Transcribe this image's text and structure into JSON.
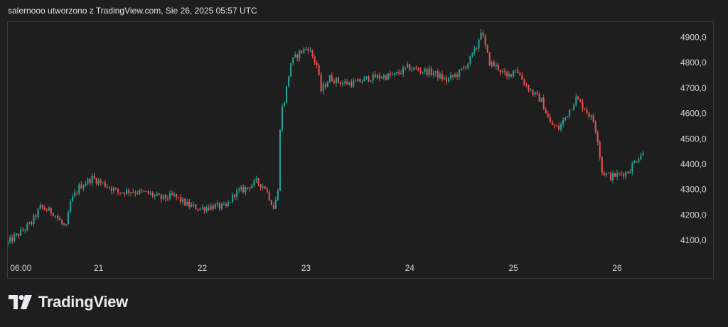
{
  "header": {
    "caption": "salernooo utworzono z TradingView.com, Sie 26, 2025 05:57 UTC"
  },
  "branding": {
    "logo_text": "TradingView",
    "logo_icon": "tradingview-logo-icon"
  },
  "colors": {
    "background": "#1e1e1e",
    "up": "#26a69a",
    "down": "#ef5350",
    "text": "#d1d4dc",
    "border": "#3a3a3a"
  },
  "chart_data": {
    "type": "candlestick",
    "y_axis_position": "right",
    "ylim": [
      4050,
      4960
    ],
    "y_ticks": [
      4100,
      4200,
      4300,
      4400,
      4500,
      4600,
      4700,
      4800,
      4900
    ],
    "y_tick_labels": [
      "4100,0",
      "4200,0",
      "4300,0",
      "4400,0",
      "4500,0",
      "4600,0",
      "4700,0",
      "4800,0",
      "4900,0"
    ],
    "x_ticks": [
      {
        "t": 0,
        "label": "06:00"
      },
      {
        "t": 18,
        "label": "21"
      },
      {
        "t": 42,
        "label": "22"
      },
      {
        "t": 66,
        "label": "23"
      },
      {
        "t": 90,
        "label": "24"
      },
      {
        "t": 114,
        "label": "25"
      },
      {
        "t": 138,
        "label": "26"
      }
    ],
    "x_range_hours": [
      -3,
      150
    ],
    "last_time_hours": 144,
    "price_path": [
      [
        -3,
        4085
      ],
      [
        0,
        4125
      ],
      [
        3,
        4170
      ],
      [
        5,
        4230
      ],
      [
        8,
        4210
      ],
      [
        10,
        4165
      ],
      [
        11,
        4150
      ],
      [
        12,
        4250
      ],
      [
        14,
        4310
      ],
      [
        17,
        4345
      ],
      [
        20,
        4320
      ],
      [
        23,
        4290
      ],
      [
        26,
        4295
      ],
      [
        30,
        4285
      ],
      [
        33,
        4265
      ],
      [
        36,
        4275
      ],
      [
        39,
        4240
      ],
      [
        42,
        4225
      ],
      [
        45,
        4235
      ],
      [
        48,
        4230
      ],
      [
        50,
        4285
      ],
      [
        52,
        4300
      ],
      [
        55,
        4330
      ],
      [
        57,
        4310
      ],
      [
        59,
        4230
      ],
      [
        60,
        4290
      ],
      [
        60.6,
        4600
      ],
      [
        61.5,
        4650
      ],
      [
        63,
        4800
      ],
      [
        65,
        4840
      ],
      [
        67,
        4860
      ],
      [
        69,
        4790
      ],
      [
        70,
        4690
      ],
      [
        72,
        4740
      ],
      [
        75,
        4720
      ],
      [
        78,
        4720
      ],
      [
        81,
        4740
      ],
      [
        84,
        4745
      ],
      [
        87,
        4750
      ],
      [
        90,
        4780
      ],
      [
        93,
        4770
      ],
      [
        96,
        4760
      ],
      [
        99,
        4730
      ],
      [
        102,
        4760
      ],
      [
        104,
        4800
      ],
      [
        106,
        4860
      ],
      [
        107,
        4930
      ],
      [
        108,
        4860
      ],
      [
        109,
        4800
      ],
      [
        111,
        4780
      ],
      [
        113,
        4740
      ],
      [
        115,
        4780
      ],
      [
        117,
        4720
      ],
      [
        119,
        4680
      ],
      [
        121,
        4650
      ],
      [
        123,
        4560
      ],
      [
        125,
        4540
      ],
      [
        127,
        4600
      ],
      [
        129,
        4660
      ],
      [
        131,
        4620
      ],
      [
        133,
        4570
      ],
      [
        134,
        4500
      ],
      [
        135,
        4370
      ],
      [
        137,
        4350
      ],
      [
        139,
        4360
      ],
      [
        141,
        4370
      ],
      [
        143,
        4420
      ],
      [
        144,
        4440
      ]
    ]
  }
}
